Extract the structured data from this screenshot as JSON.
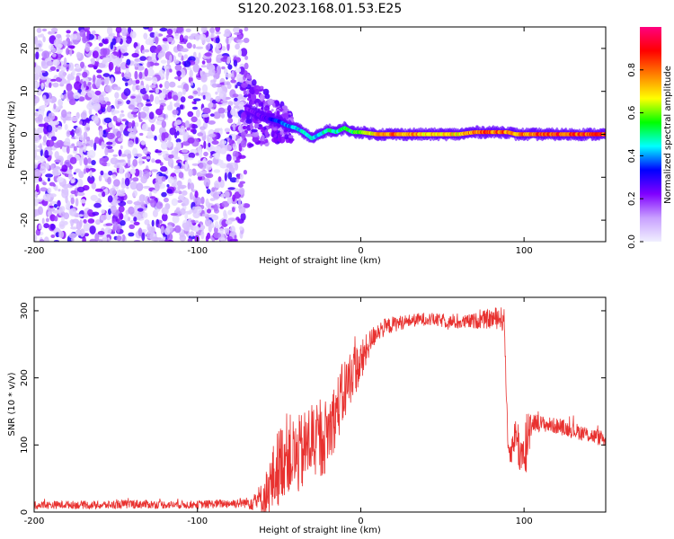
{
  "figure_title": "S120.2023.168.01.53.E25",
  "chart_data": [
    {
      "type": "heatmap",
      "title": "",
      "xlabel": "Height of straight line (km)",
      "ylabel": "Frequency (Hz)",
      "xlim": [
        -200,
        150
      ],
      "ylim": [
        -25,
        25
      ],
      "x_ticks": [
        -200,
        -100,
        0,
        100
      ],
      "y_ticks": [
        -20,
        -10,
        0,
        10,
        20
      ],
      "grid": false,
      "colorbar": {
        "label": "Normalized spectral amplitude",
        "range": [
          0.0,
          1.0
        ],
        "ticks": [
          "0.0",
          "0.2",
          "0.4",
          "0.6",
          "0.8"
        ],
        "colormap": [
          "#f0f0ff",
          "#c8a0ff",
          "#8000ff",
          "#0000ff",
          "#00ffff",
          "#00ff00",
          "#ffff00",
          "#ff8000",
          "#ff0000",
          "#ff0080"
        ]
      },
      "noise_region_x": [
        -200,
        -70
      ],
      "signal_line": {
        "x": [
          -70,
          -60,
          -50,
          -45,
          -40,
          -35,
          -30,
          -25,
          -20,
          -15,
          -10,
          -5,
          0,
          10,
          20,
          40,
          60,
          70,
          80,
          90,
          95,
          100,
          110,
          120,
          130,
          140,
          150
        ],
        "freq": [
          6,
          4,
          3,
          2,
          1.5,
          0.5,
          -1,
          0,
          1,
          0.5,
          1.5,
          0.5,
          0.5,
          0,
          0,
          0,
          0,
          0.5,
          0.5,
          0.5,
          0,
          0,
          0,
          0,
          0,
          0,
          0
        ],
        "amplitude": [
          0.2,
          0.25,
          0.35,
          0.4,
          0.45,
          0.45,
          0.45,
          0.45,
          0.5,
          0.5,
          0.55,
          0.55,
          0.6,
          0.75,
          0.8,
          0.75,
          0.7,
          0.8,
          0.85,
          0.8,
          0.7,
          0.8,
          0.85,
          0.85,
          0.85,
          0.85,
          0.85
        ]
      }
    },
    {
      "type": "line",
      "title": "",
      "xlabel": "Height of straight line (km)",
      "ylabel": "SNR (10 * v/v)",
      "xlim": [
        -200,
        150
      ],
      "ylim": [
        0,
        320
      ],
      "x_ticks": [
        -200,
        -100,
        0,
        100
      ],
      "y_ticks": [
        0,
        100,
        200,
        300
      ],
      "grid": false,
      "series": [
        {
          "color": "#e8312f",
          "x": [
            -200,
            -180,
            -160,
            -140,
            -120,
            -100,
            -80,
            -70,
            -60,
            -55,
            -50,
            -45,
            -40,
            -35,
            -30,
            -25,
            -20,
            -15,
            -10,
            -5,
            0,
            5,
            10,
            20,
            30,
            40,
            50,
            60,
            70,
            80,
            85,
            88,
            90,
            92,
            95,
            100,
            102,
            105,
            110,
            120,
            130,
            140,
            150
          ],
          "y": [
            10,
            11,
            10,
            12,
            11,
            11,
            13,
            14,
            20,
            40,
            70,
            90,
            80,
            90,
            110,
            100,
            120,
            150,
            180,
            210,
            220,
            250,
            270,
            280,
            285,
            288,
            285,
            282,
            285,
            288,
            290,
            285,
            100,
            90,
            120,
            60,
            120,
            135,
            132,
            128,
            122,
            115,
            108
          ],
          "noise_amplitude": [
            6,
            6,
            6,
            7,
            6,
            6,
            7,
            8,
            25,
            50,
            60,
            60,
            60,
            60,
            60,
            55,
            55,
            50,
            50,
            40,
            35,
            20,
            15,
            12,
            10,
            10,
            10,
            10,
            12,
            15,
            18,
            18,
            20,
            20,
            25,
            60,
            60,
            15,
            12,
            12,
            12,
            12,
            12
          ]
        }
      ]
    }
  ],
  "theme": {
    "line_color": "#e8312f",
    "frame_color": "#000000",
    "background": "#ffffff"
  }
}
